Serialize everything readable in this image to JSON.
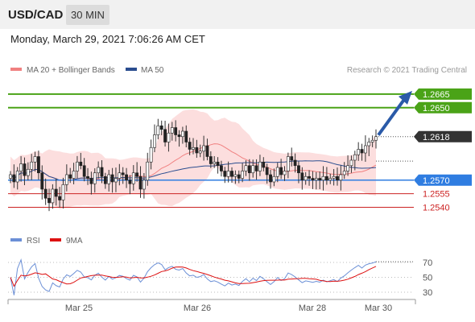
{
  "header": {
    "symbol": "USD/CAD",
    "timeframe": "30 MIN",
    "datetime": "Monday, March 29, 2021 7:06:26 AM CET"
  },
  "legend": {
    "bollinger_label": "MA 20 + Bollinger Bands",
    "ma50_label": "MA 50",
    "credit": "Research © 2021 Trading Central",
    "colors": {
      "bollinger": "#f08080",
      "ma50": "#2a4d8f"
    }
  },
  "chart_data": [
    {
      "type": "candlestick",
      "title": "",
      "ylim": [
        1.252,
        1.268
      ],
      "price_levels": [
        {
          "value": 1.2665,
          "label": "1.2665",
          "kind": "resistance",
          "color": "#4aa317"
        },
        {
          "value": 1.265,
          "label": "1.2650",
          "kind": "resistance",
          "color": "#4aa317"
        },
        {
          "value": 1.2618,
          "label": "1.2618",
          "kind": "last-price",
          "color": "#333333"
        },
        {
          "value": 1.257,
          "label": "1.2570",
          "kind": "pivot",
          "color": "#2f7de1"
        },
        {
          "value": 1.2555,
          "label": "1.2555",
          "kind": "support",
          "color": "#cc2222"
        },
        {
          "value": 1.254,
          "label": "1.2540",
          "kind": "support",
          "color": "#cc2222"
        }
      ],
      "forecast_arrow": {
        "from": 1.2618,
        "to": 1.2665,
        "color": "#2a5aa8"
      },
      "ohlc_close": [
        1.2576,
        1.2568,
        1.258,
        1.2588,
        1.2575,
        1.2582,
        1.259,
        1.2596,
        1.2578,
        1.256,
        1.255,
        1.2545,
        1.256,
        1.2552,
        1.2548,
        1.2565,
        1.2576,
        1.2572,
        1.258,
        1.259,
        1.2586,
        1.2574,
        1.2572,
        1.2566,
        1.2578,
        1.2584,
        1.2574,
        1.2566,
        1.2576,
        1.2568,
        1.2572,
        1.2578,
        1.2576,
        1.257,
        1.2566,
        1.2578,
        1.2574,
        1.256,
        1.257,
        1.259,
        1.2606,
        1.262,
        1.263,
        1.2626,
        1.2612,
        1.2622,
        1.2628,
        1.262,
        1.2618,
        1.2624,
        1.2612,
        1.2604,
        1.2606,
        1.26,
        1.2602,
        1.2608,
        1.2596,
        1.2588,
        1.259,
        1.2586,
        1.258,
        1.2574,
        1.258,
        1.2574,
        1.2576,
        1.2572,
        1.258,
        1.2586,
        1.2578,
        1.2586,
        1.258,
        1.259,
        1.2584,
        1.2576,
        1.2568,
        1.2574,
        1.2584,
        1.2576,
        1.258,
        1.2596,
        1.2592,
        1.2586,
        1.2578,
        1.257,
        1.2574,
        1.2572,
        1.257,
        1.2572,
        1.257,
        1.2574,
        1.257,
        1.2572,
        1.2574,
        1.257,
        1.2576,
        1.258,
        1.2586,
        1.2592,
        1.2598,
        1.2604,
        1.26,
        1.2608,
        1.2612,
        1.2614,
        1.2618
      ],
      "x_ticks": [
        "Mar 25",
        "Mar 26",
        "Mar 28",
        "Mar 30"
      ]
    },
    {
      "type": "line",
      "title": "",
      "ylim": [
        20,
        80
      ],
      "y_ticks": [
        70,
        50,
        30
      ],
      "legend": [
        {
          "name": "RSI",
          "color": "#6b8fd6"
        },
        {
          "name": "9MA",
          "color": "#dd1111"
        }
      ]
    }
  ]
}
